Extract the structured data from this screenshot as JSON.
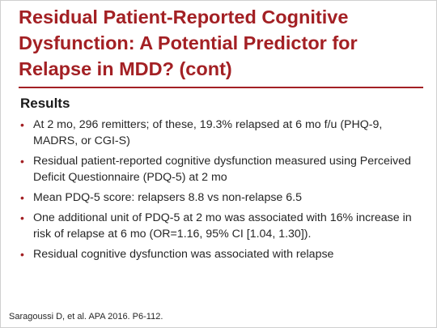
{
  "slide": {
    "title": "Residual Patient-Reported Cognitive Dysfunction: A Potential Predictor for Relapse in MDD? (cont)",
    "section_heading": "Results",
    "bullet_marker": "•",
    "bullets": [
      "At 2 mo, 296 remitters; of these, 19.3% relapsed at 6 mo f/u (PHQ-9, MADRS, or CGI-S)",
      "Residual patient-reported cognitive dysfunction measured using Perceived Deficit Questionnaire (PDQ-5) at 2 mo",
      "Mean PDQ-5 score: relapsers 8.8 vs non-relapse 6.5",
      "One additional unit of PDQ-5 at 2 mo was associated with 16% increase in risk of relapse at 6 mo (OR=1.16, 95% CI [1.04, 1.30]).",
      "Residual cognitive dysfunction was associated with relapse"
    ],
    "citation": "Saragoussi D, et al. APA 2016. P6-112."
  },
  "colors": {
    "accent": "#a32024",
    "text": "#262626",
    "background": "#ffffff"
  }
}
